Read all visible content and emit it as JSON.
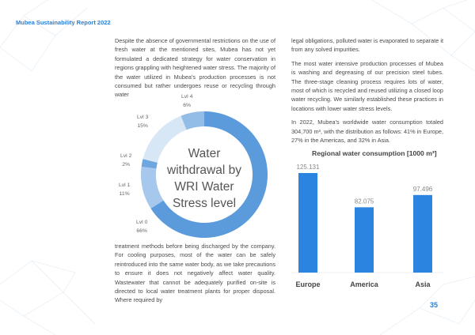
{
  "header": {
    "title": "Mubea Sustainability Report 2022"
  },
  "left_column": {
    "para1": "Despite the absence of governmental restrictions on the use of fresh water at the mentioned sites, Mubea has not yet formulated a dedicated strategy for water conservation in regions grappling with heightened water stress. The majority of the water utilized in Mubea's production processes is not consumed but rather undergoes reuse or recycling through water",
    "para2": "treatment methods before being discharged by the company. For cooling purposes, most of the water can be safely reintroduced into the same water body, as we take precautions to ensure it does not negatively affect water quality. Wastewater that cannot be adequately purified on-site is directed to local water treatment plants for proper disposal. Where required by"
  },
  "right_column": {
    "para1": "legal obligations, polluted water is evaporated to separate it from any solved impurities.",
    "para2": "The most water intensive production processes of Mubea is washing and degreasing of our precision steel tubes. The three-stage cleaning process requires lots of water, most of which is recycled and reused utilizing a closed loop water recycling. We similarly established these practices in locations with lower water stress levels.",
    "para3": "In 2022, Mubea's worldwide water consumption totaled 304,700 m³, with the distribution as follows: 41% in Europe, 27% in the Americas, and 32% in Asia."
  },
  "chart_data": [
    {
      "type": "pie",
      "title": "Water withdrawal by WRI Water Stress level",
      "title_lines": [
        "Water",
        "withdrawal by",
        "WRI Water",
        "Stress level"
      ],
      "categories": [
        "Lvl 0",
        "Lvl 1",
        "Lvl 2",
        "Lvl 3",
        "Lvl 4"
      ],
      "values": [
        66,
        11,
        2,
        15,
        6
      ],
      "labels": [
        "66%",
        "11%",
        "2%",
        "15%",
        "6%"
      ],
      "colors": [
        "#5b9bdc",
        "#a6c8ec",
        "#6ea6e0",
        "#d8e7f6",
        "#93bce6"
      ],
      "donut": true
    },
    {
      "type": "bar",
      "title": "Regional water consumption [1000 m³]",
      "categories": [
        "Europe",
        "America",
        "Asia"
      ],
      "values": [
        125.131,
        82.075,
        97.496
      ],
      "value_labels": [
        "125.131",
        "82.075",
        "97.496"
      ],
      "color": "#2a84e0",
      "ylim": [
        0,
        140
      ]
    }
  ],
  "footer": {
    "page_number": "35"
  },
  "colors": {
    "accent": "#2b7fd4"
  }
}
